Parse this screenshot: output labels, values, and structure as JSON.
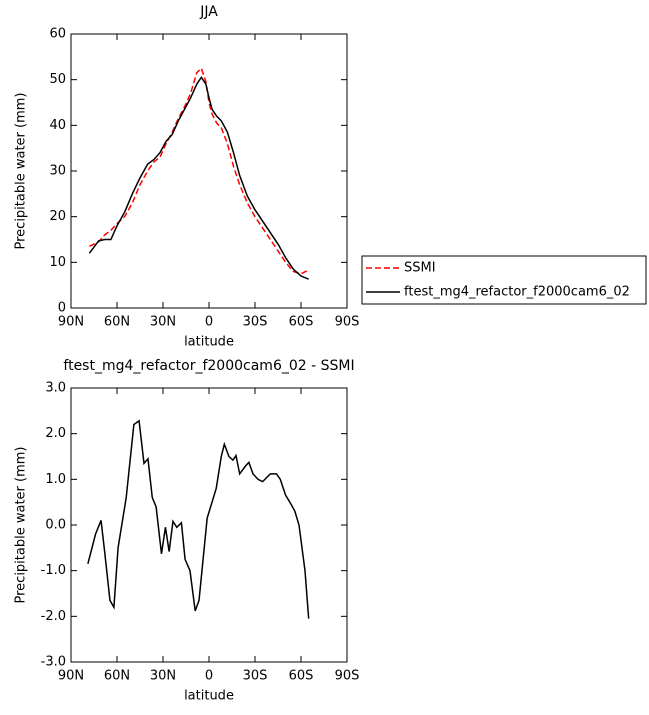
{
  "chart_data": [
    {
      "type": "line",
      "title": "JJA",
      "xlabel": "latitude",
      "ylabel": "Precipitable water (mm)",
      "xlim": [
        90,
        -90
      ],
      "xticks": [
        {
          "value": 90,
          "label": "90N"
        },
        {
          "value": 60,
          "label": "60N"
        },
        {
          "value": 30,
          "label": "30N"
        },
        0,
        {
          "value": -30,
          "label": "30S"
        },
        {
          "value": -60,
          "label": "60S"
        },
        {
          "value": -90,
          "label": "90S"
        }
      ],
      "ylim": [
        0,
        60
      ],
      "yticks": [
        0,
        10,
        20,
        30,
        40,
        50,
        60
      ],
      "legend": "right",
      "series": [
        {
          "name": "SSMI",
          "color": "#ff0000",
          "dash": true,
          "x": [
            78,
            72,
            68,
            64,
            60,
            55,
            50,
            45,
            40,
            36,
            32,
            28,
            24,
            20,
            16,
            12,
            8,
            5,
            2,
            0,
            -2,
            -5,
            -8,
            -12,
            -16,
            -20,
            -25,
            -30,
            -35,
            -40,
            -45,
            -50,
            -55,
            -60,
            -65
          ],
          "values": [
            13.5,
            14.5,
            16,
            17,
            18.5,
            20,
            23,
            27,
            30,
            32,
            33,
            36,
            38.5,
            41.5,
            44,
            47,
            51.5,
            52.5,
            49.5,
            45,
            42.5,
            40.5,
            39.5,
            36,
            31,
            27,
            23,
            20,
            17.5,
            15,
            12.5,
            10,
            8,
            7.5,
            8.3
          ]
        },
        {
          "name": "ftest_mg4_refactor_f2000cam6_02",
          "color": "#000000",
          "dash": false,
          "x": [
            78,
            72,
            68,
            64,
            60,
            55,
            50,
            45,
            40,
            36,
            32,
            28,
            24,
            20,
            16,
            12,
            8,
            5,
            2,
            0,
            -2,
            -5,
            -8,
            -12,
            -16,
            -20,
            -25,
            -30,
            -35,
            -40,
            -45,
            -50,
            -55,
            -60,
            -65
          ],
          "values": [
            12,
            14.7,
            15,
            15,
            18,
            21,
            25,
            28.5,
            31.5,
            32.5,
            34,
            36.5,
            38,
            41,
            43.5,
            46,
            49,
            50.5,
            49,
            46,
            43.5,
            42,
            41,
            38.5,
            34,
            29,
            24.5,
            21.5,
            19,
            16.5,
            14,
            11,
            8.5,
            7,
            6.3
          ]
        }
      ]
    },
    {
      "type": "line",
      "title": "ftest_mg4_refactor_f2000cam6_02 - SSMI",
      "xlabel": "latitude",
      "ylabel": "Precipitable water (mm)",
      "xlim": [
        90,
        -90
      ],
      "xticks": [
        {
          "value": 90,
          "label": "90N"
        },
        {
          "value": 60,
          "label": "60N"
        },
        {
          "value": 30,
          "label": "30N"
        },
        0,
        {
          "value": -30,
          "label": "30S"
        },
        {
          "value": -60,
          "label": "60S"
        },
        {
          "value": -90,
          "label": "90S"
        }
      ],
      "ylim": [
        -3,
        3
      ],
      "yticks": [
        {
          "value": -3,
          "label": "-3.0"
        },
        {
          "value": -2,
          "label": "-2.0"
        },
        {
          "value": -1,
          "label": "-1.0"
        },
        {
          "value": 0,
          "label": "0.0"
        },
        {
          "value": 1,
          "label": "1.0"
        },
        {
          "value": 2,
          "label": "2.0"
        },
        {
          "value": 3,
          "label": "3.0"
        }
      ],
      "series": [
        {
          "color": "#000000",
          "dash": false,
          "x": [
            79,
            74,
            70.4,
            68,
            64.6,
            62,
            59.3,
            54,
            49,
            45.6,
            42.4,
            39.8,
            37,
            34.5,
            31,
            28.4,
            26,
            23.5,
            21,
            18,
            15.6,
            12.4,
            9,
            6.5,
            1.2,
            -4.7,
            -8,
            -10,
            -13,
            -15.6,
            -17.6,
            -20,
            -24,
            -26,
            -28.7,
            -32,
            -35,
            -40,
            -44,
            -46.5,
            -50,
            -53.6,
            -56,
            -58.7,
            -62.6,
            -65
          ],
          "values": [
            -0.85,
            -0.2,
            0.1,
            -0.6,
            -1.65,
            -1.8,
            -0.5,
            0.6,
            2.2,
            2.28,
            1.35,
            1.45,
            0.6,
            0.4,
            -0.63,
            -0.05,
            -0.58,
            0.08,
            -0.05,
            0.05,
            -0.75,
            -1.0,
            -1.88,
            -1.65,
            0.15,
            0.8,
            1.5,
            1.77,
            1.5,
            1.42,
            1.52,
            1.12,
            1.3,
            1.37,
            1.12,
            1.0,
            0.95,
            1.12,
            1.12,
            1.0,
            0.65,
            0.45,
            0.3,
            0.0,
            -1.0,
            -2.05
          ]
        }
      ]
    }
  ]
}
